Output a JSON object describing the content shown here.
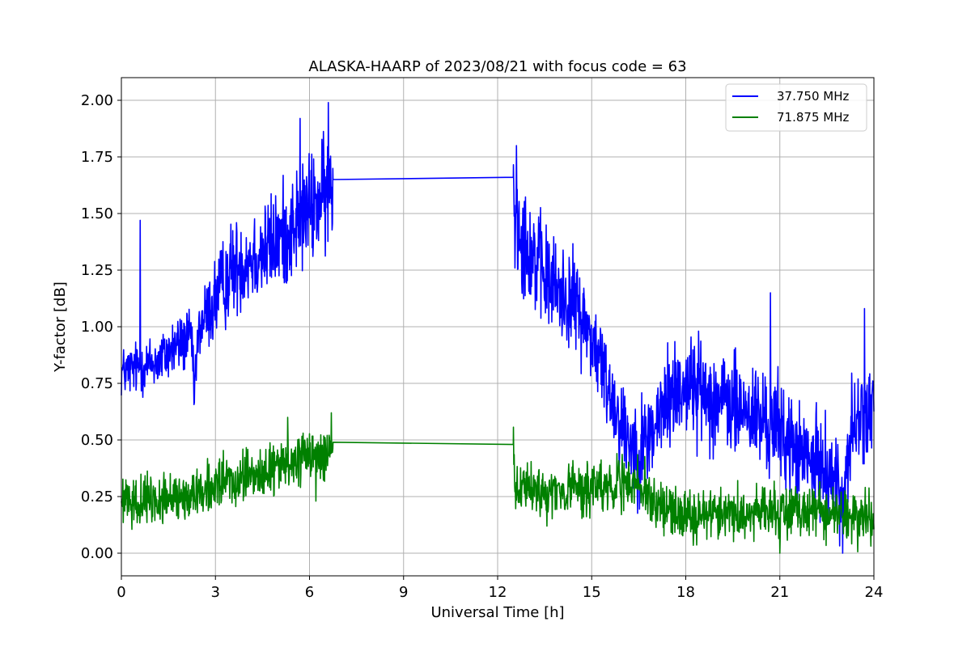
{
  "chart_data": {
    "type": "line",
    "title": "ALASKA-HAARP of 2023/08/21 with focus code = 63",
    "xlabel": "Universal Time [h]",
    "ylabel": "Y-factor [dB]",
    "xlim": [
      0,
      24
    ],
    "ylim": [
      -0.1,
      2.1
    ],
    "xticks": [
      0,
      3,
      6,
      9,
      12,
      15,
      18,
      21,
      24
    ],
    "xtick_labels": [
      "0",
      "3",
      "6",
      "9",
      "12",
      "15",
      "18",
      "21",
      "24"
    ],
    "yticks": [
      0.0,
      0.25,
      0.5,
      0.75,
      1.0,
      1.25,
      1.5,
      1.75,
      2.0
    ],
    "ytick_labels": [
      "0.00",
      "0.25",
      "0.50",
      "0.75",
      "1.00",
      "1.25",
      "1.50",
      "1.75",
      "2.00"
    ],
    "grid": true,
    "legend_position": "top-right",
    "series": [
      {
        "name": "37.750 MHz",
        "color": "#0000ff",
        "points": [
          [
            0.0,
            0.8
          ],
          [
            0.6,
            0.82
          ],
          [
            1.2,
            0.85
          ],
          [
            1.8,
            0.92
          ],
          [
            2.25,
            0.95
          ],
          [
            2.3,
            0.7
          ],
          [
            2.5,
            1.0
          ],
          [
            3.0,
            1.12
          ],
          [
            3.5,
            1.25
          ],
          [
            4.0,
            1.3
          ],
          [
            4.5,
            1.33
          ],
          [
            5.0,
            1.38
          ],
          [
            5.5,
            1.45
          ],
          [
            6.0,
            1.52
          ],
          [
            6.5,
            1.58
          ],
          [
            6.75,
            1.6
          ],
          [
            6.76,
            1.65
          ],
          [
            12.5,
            1.66
          ],
          [
            12.55,
            1.5
          ],
          [
            13.0,
            1.35
          ],
          [
            13.5,
            1.22
          ],
          [
            14.0,
            1.15
          ],
          [
            14.5,
            1.1
          ],
          [
            15.0,
            0.95
          ],
          [
            15.5,
            0.75
          ],
          [
            16.0,
            0.55
          ],
          [
            16.5,
            0.45
          ],
          [
            17.0,
            0.55
          ],
          [
            17.5,
            0.7
          ],
          [
            18.0,
            0.75
          ],
          [
            18.5,
            0.72
          ],
          [
            19.0,
            0.68
          ],
          [
            19.5,
            0.65
          ],
          [
            20.0,
            0.62
          ],
          [
            20.5,
            0.58
          ],
          [
            21.0,
            0.55
          ],
          [
            21.5,
            0.45
          ],
          [
            22.0,
            0.4
          ],
          [
            22.5,
            0.38
          ],
          [
            23.0,
            0.25
          ],
          [
            23.3,
            0.55
          ],
          [
            24.0,
            0.65
          ]
        ],
        "noise_amplitude": [
          [
            0.0,
            0.08
          ],
          [
            2.5,
            0.1
          ],
          [
            3.0,
            0.14
          ],
          [
            6.75,
            0.18
          ],
          [
            12.5,
            0.18
          ],
          [
            15.0,
            0.14
          ],
          [
            17.0,
            0.16
          ],
          [
            21.0,
            0.16
          ],
          [
            24.0,
            0.14
          ]
        ],
        "spikes": [
          [
            0.6,
            1.47
          ],
          [
            5.7,
            1.92
          ],
          [
            6.6,
            1.99
          ],
          [
            12.6,
            1.8
          ],
          [
            20.7,
            1.15
          ],
          [
            23.7,
            1.08
          ],
          [
            23.0,
            0.0
          ]
        ]
      },
      {
        "name": "71.875 MHz",
        "color": "#008000",
        "points": [
          [
            0.0,
            0.22
          ],
          [
            1.0,
            0.23
          ],
          [
            2.0,
            0.25
          ],
          [
            3.0,
            0.3
          ],
          [
            4.0,
            0.33
          ],
          [
            5.0,
            0.38
          ],
          [
            6.0,
            0.42
          ],
          [
            6.75,
            0.45
          ],
          [
            6.76,
            0.49
          ],
          [
            12.5,
            0.48
          ],
          [
            12.55,
            0.28
          ],
          [
            13.5,
            0.27
          ],
          [
            14.5,
            0.28
          ],
          [
            15.5,
            0.3
          ],
          [
            16.5,
            0.3
          ],
          [
            17.0,
            0.22
          ],
          [
            18.0,
            0.17
          ],
          [
            19.0,
            0.17
          ],
          [
            20.0,
            0.18
          ],
          [
            21.0,
            0.2
          ],
          [
            22.0,
            0.19
          ],
          [
            23.0,
            0.17
          ],
          [
            24.0,
            0.15
          ]
        ],
        "noise_amplitude": [
          [
            0.0,
            0.07
          ],
          [
            6.75,
            0.08
          ],
          [
            12.5,
            0.08
          ],
          [
            24.0,
            0.08
          ]
        ],
        "spikes": [
          [
            6.7,
            0.62
          ],
          [
            5.3,
            0.6
          ],
          [
            6.2,
            0.23
          ],
          [
            15.8,
            0.44
          ],
          [
            21.0,
            0.0
          ]
        ]
      }
    ]
  }
}
